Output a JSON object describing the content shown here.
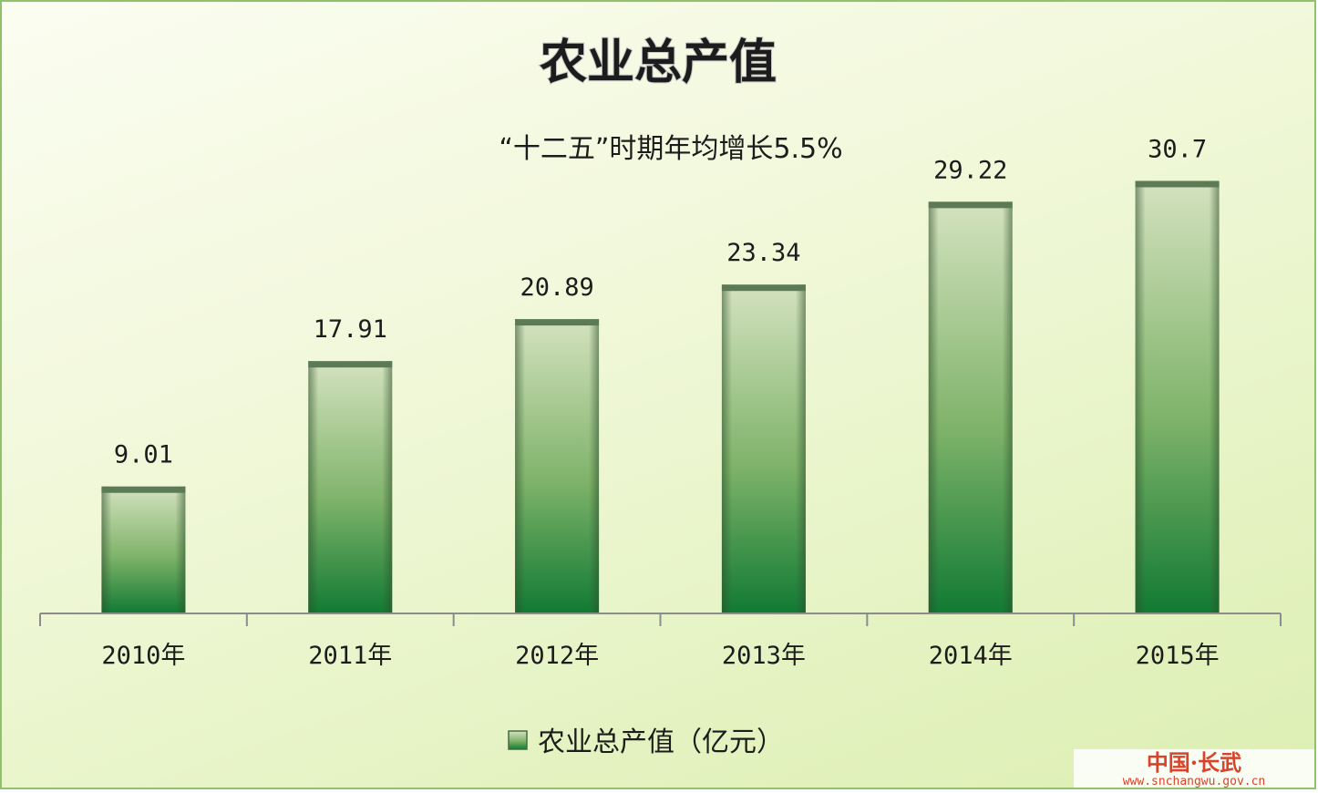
{
  "chart_data": {
    "type": "bar",
    "title": "农业总产值",
    "subtitle": "“十二五”时期年均增长5.5%",
    "categories": [
      "2010年",
      "2011年",
      "2012年",
      "2013年",
      "2014年",
      "2015年"
    ],
    "series": [
      {
        "name": "农业总产值（亿元）",
        "values": [
          9.01,
          17.91,
          20.89,
          23.34,
          29.22,
          30.7
        ],
        "labels": [
          "9.01",
          "17.91",
          "20.89",
          "23.34",
          "29.22",
          "30.7"
        ]
      }
    ],
    "ylim": [
      0,
      35
    ],
    "grid": false,
    "legend_position": "bottom",
    "colors": {
      "bar_top": "#d4e2bf",
      "bar_bottom": "#117a33",
      "bar_edge": "#4a6b45"
    }
  },
  "watermark": {
    "text": "中国·长武",
    "url": "www.snchangwu.gov.cn"
  }
}
